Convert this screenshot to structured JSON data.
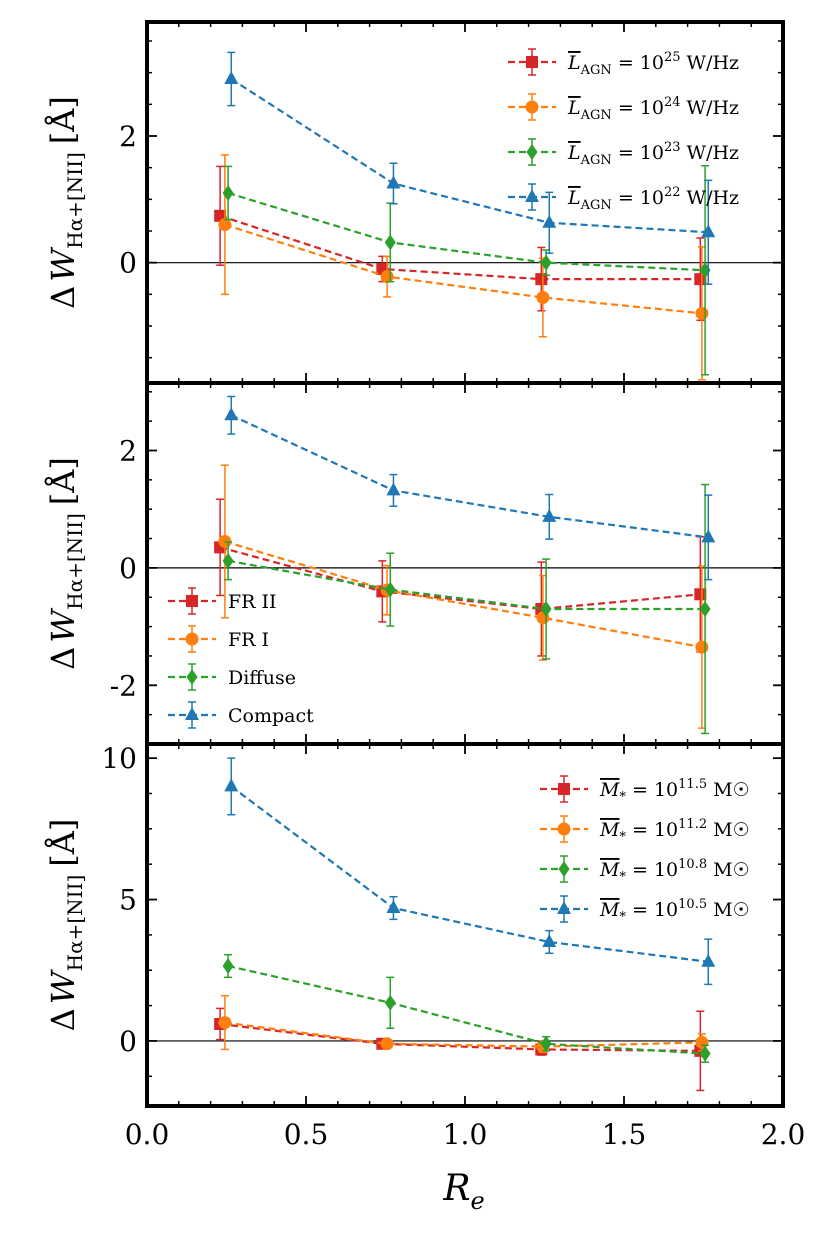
{
  "figure": {
    "xlabel": "R_e",
    "xlabel_main": "R",
    "xlabel_sub": "e"
  },
  "chart_data": [
    {
      "type": "line",
      "panel": "top",
      "ylabel": "Δ W_Hα+[NII] [Å]",
      "ylabel_parts": {
        "delta": "Δ",
        "w": "W",
        "sub": "Hα+[NII]",
        "unit": "[Å]"
      },
      "xlim": [
        0.0,
        2.0
      ],
      "ylim": [
        -1.9,
        3.8
      ],
      "x_ticks": [
        0.0,
        0.5,
        1.0,
        1.5,
        2.0
      ],
      "x_tick_labels": [
        "",
        "",
        "",
        "",
        ""
      ],
      "y_ticks": [
        0,
        2
      ],
      "y_tick_labels": [
        "0",
        "2"
      ],
      "zero_line": true,
      "legend_location": "upper right",
      "series": [
        {
          "name": "L_AGN = 10^25 W/Hz",
          "label_lhs": "L",
          "label_lhs_sub": "AGN",
          "label_overline": true,
          "label_mid": " = 10",
          "label_exp": "25",
          "label_unit": " W/Hz",
          "color": "#d62728",
          "marker": "square",
          "x": [
            0.23,
            0.74,
            1.24,
            1.74
          ],
          "y": [
            0.74,
            -0.1,
            -0.26,
            -0.26
          ],
          "yerr": [
            0.78,
            0.2,
            0.5,
            0.65
          ]
        },
        {
          "name": "L_AGN = 10^24 W/Hz",
          "label_lhs": "L",
          "label_lhs_sub": "AGN",
          "label_overline": true,
          "label_mid": " = 10",
          "label_exp": "24",
          "label_unit": " W/Hz",
          "color": "#ff7f0e",
          "marker": "circle",
          "x": [
            0.245,
            0.755,
            1.245,
            1.745
          ],
          "y": [
            0.6,
            -0.22,
            -0.55,
            -0.8
          ],
          "yerr": [
            1.1,
            0.32,
            0.62,
            1.05
          ]
        },
        {
          "name": "L_AGN = 10^23 W/Hz",
          "label_lhs": "L",
          "label_lhs_sub": "AGN",
          "label_overline": true,
          "label_mid": " = 10",
          "label_exp": "23",
          "label_unit": " W/Hz",
          "color": "#2ca02c",
          "marker": "diamond",
          "x": [
            0.255,
            0.765,
            1.255,
            1.755
          ],
          "y": [
            1.1,
            0.32,
            0.0,
            -0.12
          ],
          "yerr": [
            0.42,
            0.62,
            0.2,
            1.65
          ]
        },
        {
          "name": "L_AGN = 10^22 W/Hz",
          "label_lhs": "L",
          "label_lhs_sub": "AGN",
          "label_overline": true,
          "label_mid": " = 10",
          "label_exp": "22",
          "label_unit": " W/Hz",
          "color": "#1f77b4",
          "marker": "triangle",
          "x": [
            0.265,
            0.775,
            1.265,
            1.765
          ],
          "y": [
            2.9,
            1.25,
            0.63,
            0.48
          ],
          "yerr": [
            0.42,
            0.32,
            0.48,
            0.82
          ]
        }
      ]
    },
    {
      "type": "line",
      "panel": "middle",
      "ylabel": "Δ W_Hα+[NII] [Å]",
      "ylabel_parts": {
        "delta": "Δ",
        "w": "W",
        "sub": "Hα+[NII]",
        "unit": "[Å]"
      },
      "xlim": [
        0.0,
        2.0
      ],
      "ylim": [
        -3.0,
        3.15
      ],
      "x_ticks": [
        0.0,
        0.5,
        1.0,
        1.5,
        2.0
      ],
      "x_tick_labels": [
        "",
        "",
        "",
        "",
        ""
      ],
      "y_ticks": [
        -2,
        0,
        2
      ],
      "y_tick_labels": [
        "-2",
        "0",
        "2"
      ],
      "zero_line": true,
      "legend_location": "lower left",
      "series": [
        {
          "name": "FR II",
          "label": "FR II",
          "color": "#d62728",
          "marker": "square",
          "x": [
            0.23,
            0.74,
            1.24,
            1.74
          ],
          "y": [
            0.35,
            -0.4,
            -0.7,
            -0.45
          ],
          "yerr": [
            0.82,
            0.52,
            0.8,
            0.98
          ]
        },
        {
          "name": "FR I",
          "label": "FR I",
          "color": "#ff7f0e",
          "marker": "circle",
          "x": [
            0.245,
            0.755,
            1.245,
            1.745
          ],
          "y": [
            0.45,
            -0.38,
            -0.85,
            -1.35
          ],
          "yerr": [
            1.3,
            0.42,
            0.72,
            1.38
          ]
        },
        {
          "name": "Diffuse",
          "label": "Diffuse",
          "color": "#2ca02c",
          "marker": "diamond",
          "x": [
            0.255,
            0.765,
            1.255,
            1.755
          ],
          "y": [
            0.12,
            -0.37,
            -0.7,
            -0.7
          ],
          "yerr": [
            0.32,
            0.62,
            0.85,
            2.12
          ]
        },
        {
          "name": "Compact",
          "label": "Compact",
          "color": "#1f77b4",
          "marker": "triangle",
          "x": [
            0.265,
            0.775,
            1.265,
            1.765
          ],
          "y": [
            2.6,
            1.32,
            0.87,
            0.52
          ],
          "yerr": [
            0.32,
            0.27,
            0.38,
            0.72
          ]
        }
      ]
    },
    {
      "type": "line",
      "panel": "bottom",
      "ylabel": "Δ W_Hα+[NII] [Å]",
      "ylabel_parts": {
        "delta": "Δ",
        "w": "W",
        "sub": "Hα+[NII]",
        "unit": "[Å]"
      },
      "xlim": [
        0.0,
        2.0
      ],
      "ylim": [
        -2.3,
        10.5
      ],
      "x_ticks": [
        0.0,
        0.5,
        1.0,
        1.5,
        2.0
      ],
      "x_tick_labels": [
        "0.0",
        "0.5",
        "1.0",
        "1.5",
        "2.0"
      ],
      "y_ticks": [
        0,
        5,
        10
      ],
      "y_tick_labels": [
        "0",
        "5",
        "10"
      ],
      "zero_line": true,
      "legend_location": "upper right",
      "series": [
        {
          "name": "M* = 10^11.5 M☉",
          "label_lhs": "M",
          "label_lhs_sub": "*",
          "label_overline": true,
          "label_mid": " = 10",
          "label_exp": "11.5",
          "label_unit": " M☉",
          "color": "#d62728",
          "marker": "square",
          "x": [
            0.23,
            0.74,
            1.24,
            1.74
          ],
          "y": [
            0.6,
            -0.1,
            -0.3,
            -0.35
          ],
          "yerr": [
            0.55,
            0.12,
            0.2,
            1.4
          ]
        },
        {
          "name": "M* = 10^11.2 M☉",
          "label_lhs": "M",
          "label_lhs_sub": "*",
          "label_overline": true,
          "label_mid": " = 10",
          "label_exp": "11.2",
          "label_unit": " M☉",
          "color": "#ff7f0e",
          "marker": "circle",
          "x": [
            0.245,
            0.755,
            1.245,
            1.745
          ],
          "y": [
            0.65,
            -0.1,
            -0.2,
            -0.05
          ],
          "yerr": [
            0.95,
            0.12,
            0.2,
            0.3
          ]
        },
        {
          "name": "M* = 10^10.8 M☉",
          "label_lhs": "M",
          "label_lhs_sub": "*",
          "label_overline": true,
          "label_mid": " = 10",
          "label_exp": "10.8",
          "label_unit": " M☉",
          "color": "#2ca02c",
          "marker": "diamond",
          "x": [
            0.255,
            0.765,
            1.255,
            1.755
          ],
          "y": [
            2.65,
            1.35,
            -0.1,
            -0.45
          ],
          "yerr": [
            0.4,
            0.9,
            0.25,
            0.3
          ]
        },
        {
          "name": "M* = 10^10.5 M☉",
          "label_lhs": "M",
          "label_lhs_sub": "*",
          "label_overline": true,
          "label_mid": " = 10",
          "label_exp": "10.5",
          "label_unit": " M☉",
          "color": "#1f77b4",
          "marker": "triangle",
          "x": [
            0.265,
            0.775,
            1.265,
            1.765
          ],
          "y": [
            9.0,
            4.7,
            3.5,
            2.8
          ],
          "yerr": [
            1.0,
            0.4,
            0.4,
            0.8
          ]
        }
      ]
    }
  ]
}
